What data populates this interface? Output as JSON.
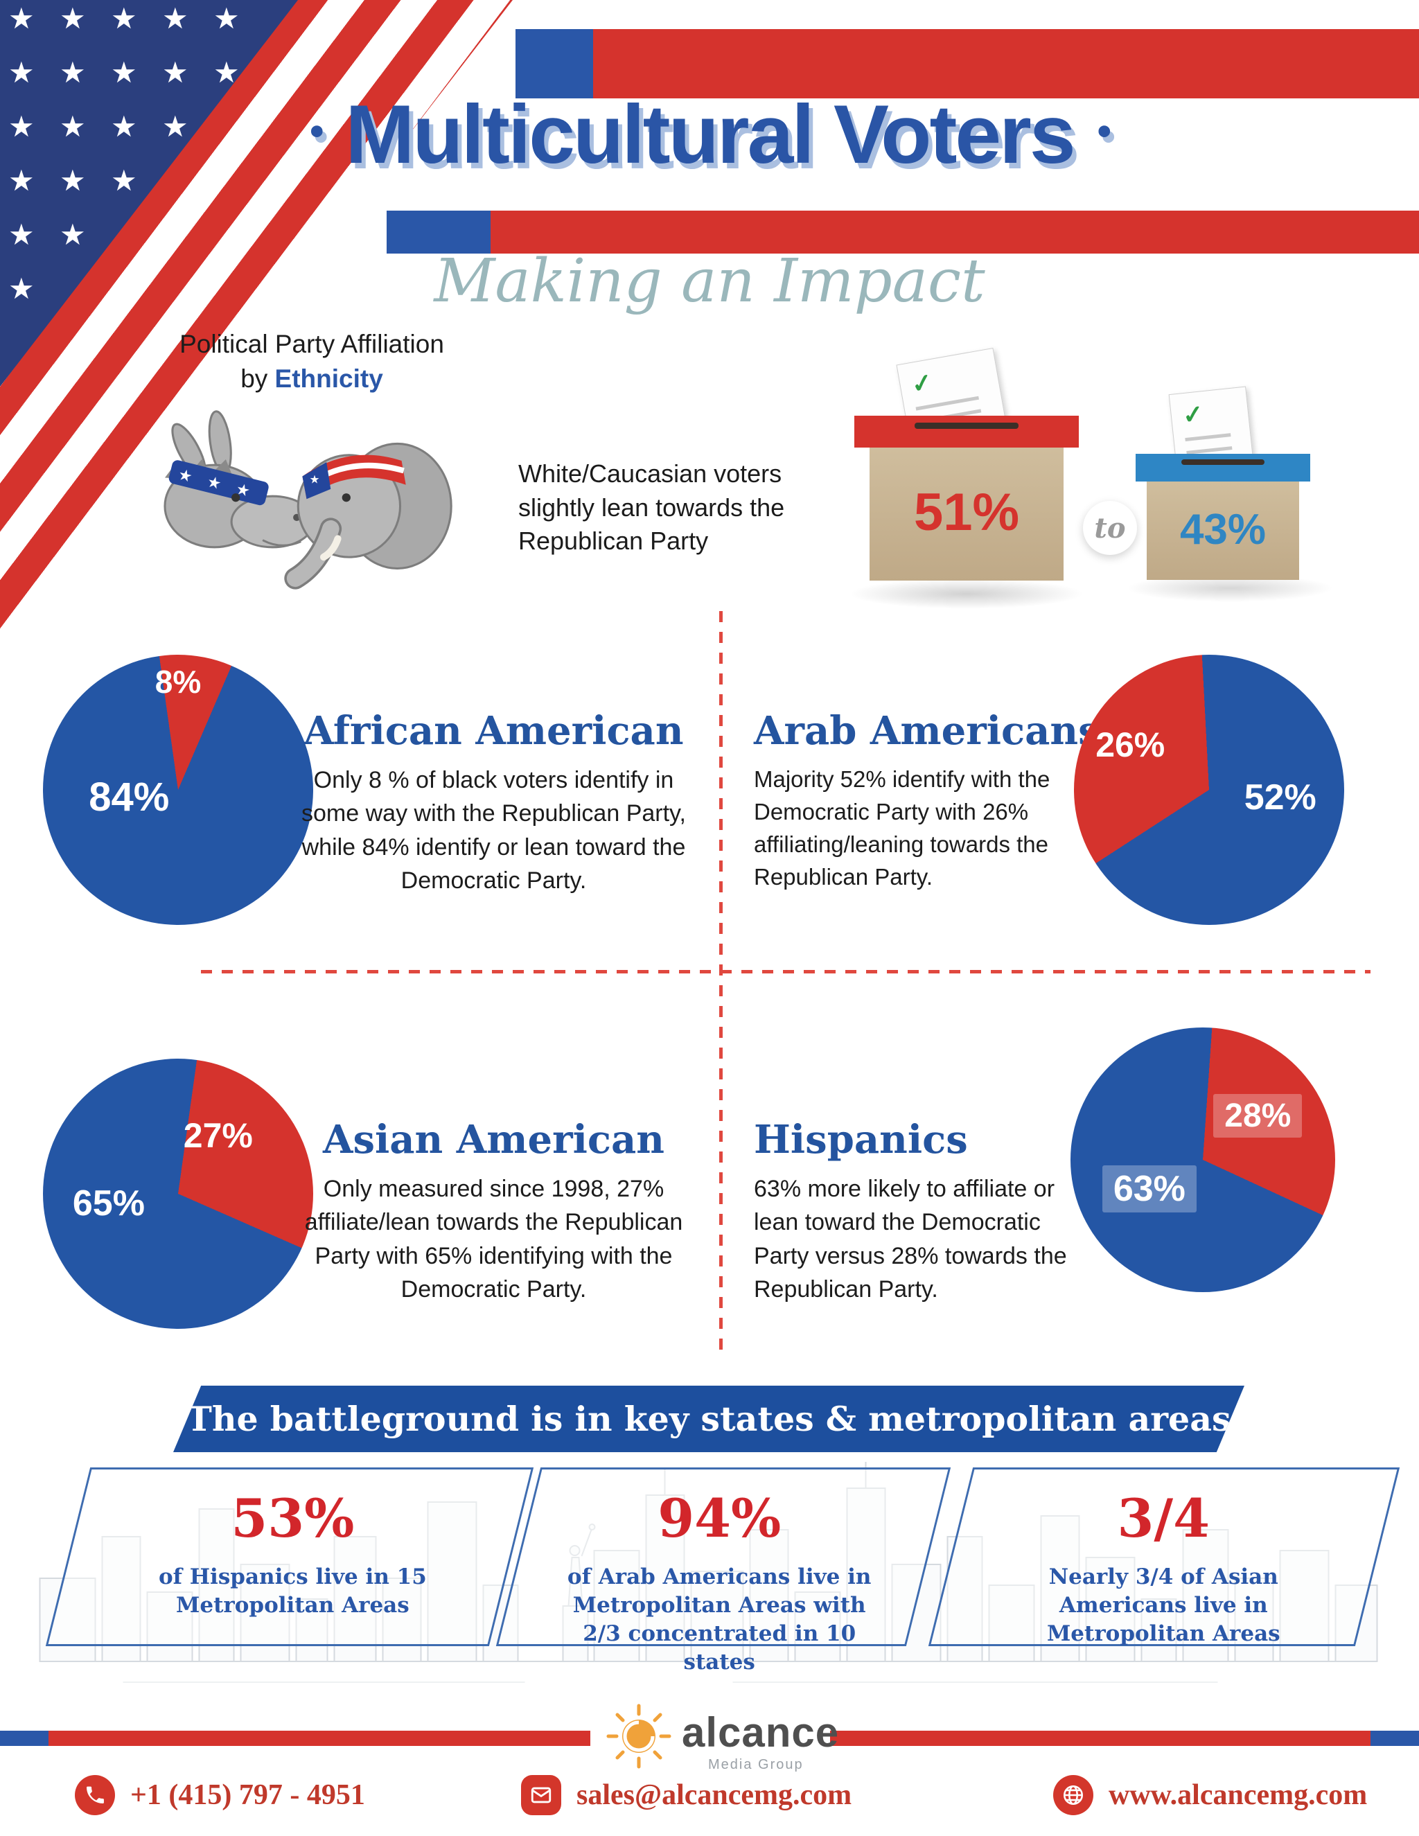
{
  "colors": {
    "republican": "#d5332d",
    "democratic": "#2456a5",
    "accent_blue": "#2a57a8",
    "accent_red": "#d5332d",
    "teal": "#9ab7bb"
  },
  "icons": {
    "star": "★",
    "check": "✓",
    "bullet": "•"
  },
  "header": {
    "bullet": "•",
    "title": "Multicultural Voters",
    "subtitle": "Making an Impact"
  },
  "intro": {
    "label_line1": "Political Party Affiliation",
    "label_by": "by ",
    "label_highlight": "Ethnicity",
    "white_caucasian_text": "White/Caucasian voters slightly lean towards the Republican Party",
    "republican_pct": "51%",
    "connector": "to",
    "democratic_pct": "43%"
  },
  "quadrants": [
    {
      "title": "African American",
      "text": "Only 8 % of black voters identify in some way with the Republican Party, while 84% identify or lean toward the Democratic Party.",
      "republican_label": "8%",
      "democratic_label": "84%"
    },
    {
      "title": "Arab Americans",
      "text": "Majority 52% identify with the Democratic Party with 26% affiliating/leaning towards the Republican Party.",
      "republican_label": "26%",
      "democratic_label": "52%"
    },
    {
      "title": "Asian American",
      "text": "Only measured since 1998, 27% affiliate/lean towards the Republican Party with 65% identifying with the Democratic Party.",
      "republican_label": "27%",
      "democratic_label": "65%"
    },
    {
      "title": "Hispanics",
      "text": "63% more likely to affiliate or lean toward the Democratic Party versus 28% towards the Republican Party.",
      "republican_label": "28%",
      "democratic_label": "63%"
    }
  ],
  "banner": {
    "text": "The battleground is in key states & metropolitan areas"
  },
  "stats": [
    {
      "value": "53%",
      "text": "of Hispanics live in 15 Metropolitan Areas"
    },
    {
      "value": "94%",
      "text": "of Arab Americans live in Metropolitan Areas with 2/3 concentrated in 10 states"
    },
    {
      "value": "3/4",
      "text": "Nearly 3/4 of Asian Americans live in Metropolitan Areas"
    }
  ],
  "footer": {
    "brand": "alcance",
    "brand_sub": "Media Group",
    "phone": "+1 (415) 797 - 4951",
    "email": "sales@alcancemg.com",
    "website": "www.alcancemg.com"
  },
  "chart_data": [
    {
      "type": "pie",
      "title": "White/Caucasian political party affiliation",
      "series": [
        {
          "name": "Republican",
          "value": 51
        },
        {
          "name": "Democratic",
          "value": 43
        }
      ],
      "note": "rendered as ballot boxes: 51% Republican (red) to 43% Democratic (blue)"
    },
    {
      "type": "pie",
      "title": "African American political party affiliation",
      "series": [
        {
          "name": "Republican",
          "value": 8
        },
        {
          "name": "Democratic",
          "value": 84
        }
      ]
    },
    {
      "type": "pie",
      "title": "Arab Americans political party affiliation",
      "series": [
        {
          "name": "Republican",
          "value": 26
        },
        {
          "name": "Democratic",
          "value": 52
        }
      ]
    },
    {
      "type": "pie",
      "title": "Asian American political party affiliation",
      "series": [
        {
          "name": "Republican",
          "value": 27
        },
        {
          "name": "Democratic",
          "value": 65
        }
      ]
    },
    {
      "type": "pie",
      "title": "Hispanics political party affiliation",
      "series": [
        {
          "name": "Republican",
          "value": 28
        },
        {
          "name": "Democratic",
          "value": 63
        }
      ]
    }
  ]
}
